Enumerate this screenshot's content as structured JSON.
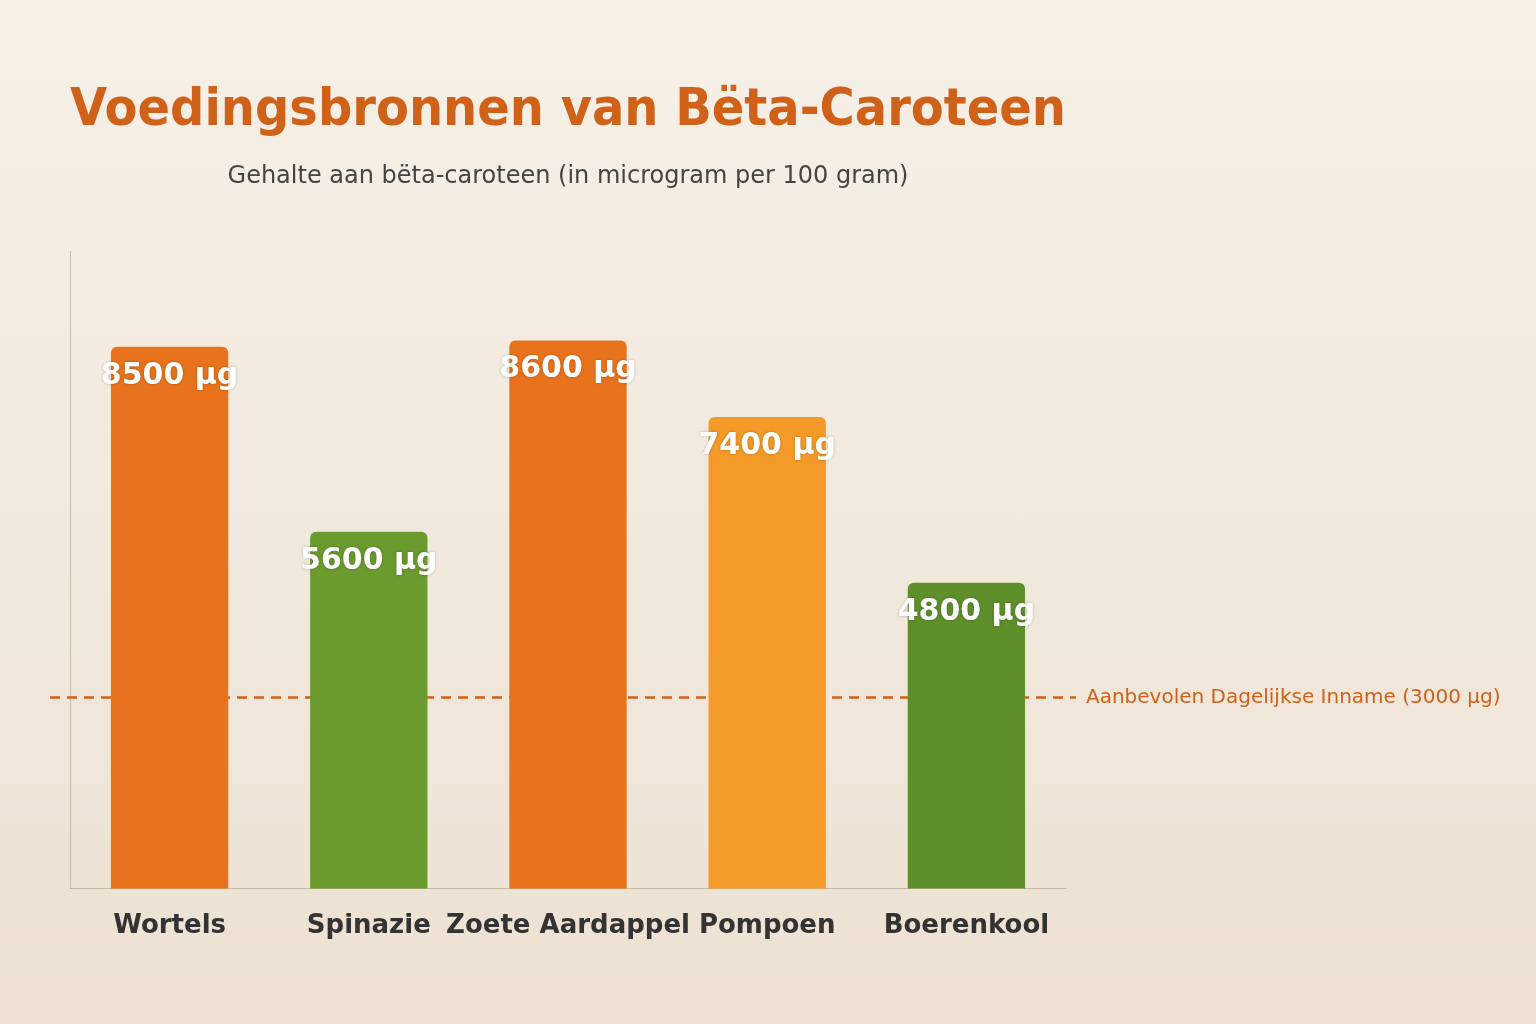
{
  "chart_data": {
    "type": "bar",
    "title": "Voedingsbronnen van Bëta-Caroteen",
    "subtitle": "Gehalte aan bëta-caroteen (in microgram per 100 gram)",
    "categories": [
      "Wortels",
      "Spinazie",
      "Zoete Aardappel",
      "Pompoen",
      "Boerenkool"
    ],
    "values": [
      8500,
      5600,
      8600,
      7400,
      4800
    ],
    "value_labels": [
      "8500 µg",
      "5600 µg",
      "8600 µg",
      "7400 µg",
      "4800 µg"
    ],
    "colors": [
      "#e8731c",
      "#6b9a2f",
      "#e8731c",
      "#f39a28",
      "#5f8f2a"
    ],
    "ylim": [
      0,
      10000
    ],
    "grid": false,
    "data_labels": true,
    "tick_labels": "x",
    "annotations": [
      {
        "text": "Aanbevolen Dagelijkse Inname (3000 µg)",
        "y": 3000
      }
    ]
  }
}
